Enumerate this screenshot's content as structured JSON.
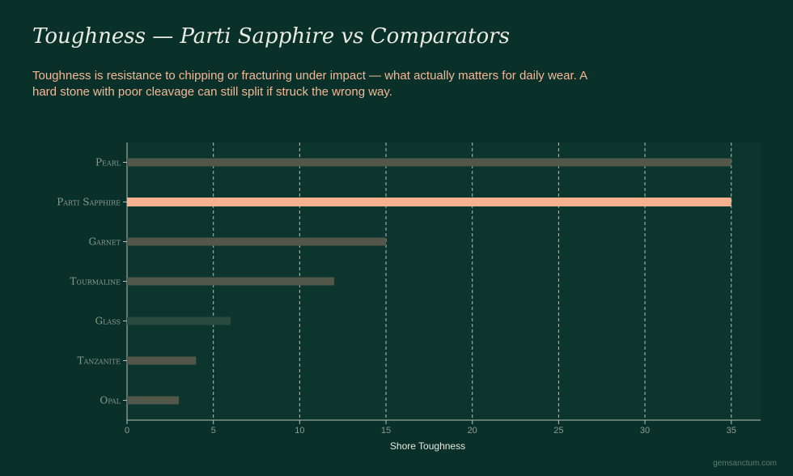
{
  "page": {
    "title": "Toughness — Parti Sapphire vs Comparators",
    "subtitle": "Toughness is resistance to chipping or fracturing under impact — what actually matters for daily wear. A hard stone with poor cleavage can still split if struck the wrong way.",
    "watermark": "gemsanctum.com"
  },
  "colors": {
    "background": "#093129",
    "plot_background": "#0b352d",
    "bar": "#53574a",
    "glass_bar": "#2a4a40",
    "highlight": "#f6b18e",
    "grid": "#d8d8cc",
    "axis": "#b9c2b6",
    "label": "#8d9c90"
  },
  "chart_data": {
    "type": "bar",
    "orientation": "horizontal",
    "categories": [
      "Pearl",
      "Parti Sapphire",
      "Garnet",
      "Tourmaline",
      "Glass",
      "Tanzanite",
      "Opal"
    ],
    "values": [
      35,
      35,
      15,
      12,
      6,
      4,
      3
    ],
    "highlight": "Parti Sapphire",
    "xlabel": "Shore Toughness",
    "ylabel": "",
    "xlim": [
      0,
      36.7
    ],
    "xticks": [
      0,
      5,
      10,
      15,
      20,
      25,
      30,
      35
    ],
    "grid": "vertical dashed"
  }
}
